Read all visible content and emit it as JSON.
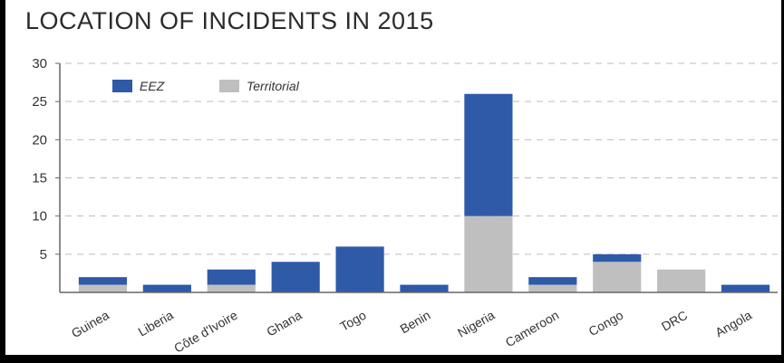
{
  "chart_data": {
    "type": "bar",
    "stacked": true,
    "title": "LOCATION OF INCIDENTS IN 2015",
    "xlabel": "",
    "ylabel": "",
    "ylim": [
      0,
      30
    ],
    "yticks": [
      5,
      10,
      15,
      20,
      25,
      30
    ],
    "grid": true,
    "legend_position": "top-left",
    "categories": [
      "Guinea",
      "Liberia",
      "Côte d'Ivoire",
      "Ghana",
      "Togo",
      "Benin",
      "Nigeria",
      "Cameroon",
      "Congo",
      "DRC",
      "Angola"
    ],
    "series": [
      {
        "name": "Territorial",
        "color": "#bfbfbf",
        "values": [
          1,
          0,
          1,
          0,
          0,
          0,
          10,
          1,
          4,
          3,
          0
        ]
      },
      {
        "name": "EEZ",
        "color": "#2e5aa8",
        "values": [
          1,
          1,
          2,
          4,
          6,
          1,
          16,
          1,
          1,
          0,
          1
        ]
      }
    ]
  }
}
